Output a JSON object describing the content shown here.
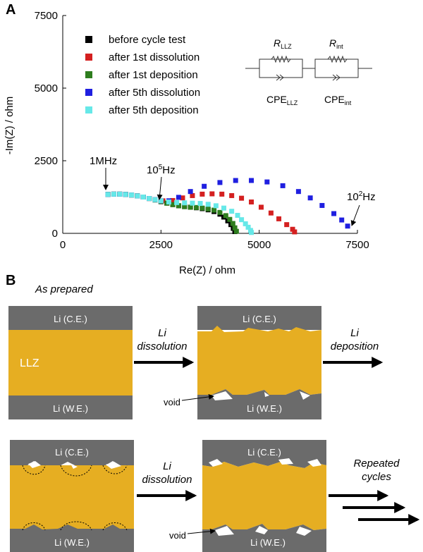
{
  "panel_a": {
    "label": "A",
    "chart_data": {
      "type": "scatter",
      "xlabel": "Re(Z) / ohm",
      "ylabel": "-Im(Z) / ohm",
      "xlim": [
        0,
        7500
      ],
      "ylim": [
        0,
        7500
      ],
      "xticks": [
        0,
        2500,
        5000,
        7500
      ],
      "yticks": [
        0,
        2500,
        5000,
        7500
      ],
      "xtick_labels": [
        "0",
        "2500",
        "5000",
        "7500"
      ],
      "ytick_labels": [
        "0",
        "2500",
        "5000",
        "7500"
      ],
      "legend_position": "top-left",
      "series": [
        {
          "name": "before cycle test",
          "color": "#000000",
          "points": [
            [
              1150,
              1340
            ],
            [
              1300,
              1350
            ],
            [
              1450,
              1350
            ],
            [
              1600,
              1340
            ],
            [
              1750,
              1320
            ],
            [
              1900,
              1290
            ],
            [
              2050,
              1250
            ],
            [
              2200,
              1200
            ],
            [
              2350,
              1150
            ],
            [
              2500,
              1090
            ],
            [
              2650,
              1040
            ],
            [
              2800,
              990
            ],
            [
              2950,
              950
            ],
            [
              3100,
              920
            ],
            [
              3250,
              900
            ],
            [
              3400,
              880
            ],
            [
              3550,
              850
            ],
            [
              3700,
              810
            ],
            [
              3850,
              750
            ],
            [
              4000,
              660
            ],
            [
              4100,
              560
            ],
            [
              4200,
              430
            ],
            [
              4280,
              300
            ],
            [
              4340,
              170
            ],
            [
              4380,
              60
            ]
          ]
        },
        {
          "name": "after 1st dissolution",
          "color": "#d42020",
          "points": [
            [
              1150,
              1340
            ],
            [
              1300,
              1350
            ],
            [
              1450,
              1350
            ],
            [
              1600,
              1340
            ],
            [
              1750,
              1320
            ],
            [
              1900,
              1290
            ],
            [
              2050,
              1250
            ],
            [
              2200,
              1200
            ],
            [
              2350,
              1160
            ],
            [
              2550,
              1120
            ],
            [
              2800,
              1130
            ],
            [
              3050,
              1220
            ],
            [
              3300,
              1300
            ],
            [
              3550,
              1350
            ],
            [
              3800,
              1360
            ],
            [
              4050,
              1350
            ],
            [
              4300,
              1300
            ],
            [
              4550,
              1210
            ],
            [
              4800,
              1080
            ],
            [
              5050,
              900
            ],
            [
              5300,
              700
            ],
            [
              5500,
              500
            ],
            [
              5700,
              300
            ],
            [
              5850,
              140
            ],
            [
              5900,
              50
            ]
          ]
        },
        {
          "name": "after 1st deposition",
          "color": "#2e7d1e",
          "points": [
            [
              1150,
              1340
            ],
            [
              1300,
              1350
            ],
            [
              1450,
              1350
            ],
            [
              1600,
              1340
            ],
            [
              1750,
              1320
            ],
            [
              1900,
              1290
            ],
            [
              2050,
              1250
            ],
            [
              2200,
              1200
            ],
            [
              2350,
              1150
            ],
            [
              2500,
              1100
            ],
            [
              2650,
              1040
            ],
            [
              2800,
              990
            ],
            [
              2950,
              950
            ],
            [
              3100,
              920
            ],
            [
              3250,
              900
            ],
            [
              3400,
              890
            ],
            [
              3550,
              870
            ],
            [
              3700,
              840
            ],
            [
              3850,
              800
            ],
            [
              4000,
              720
            ],
            [
              4150,
              610
            ],
            [
              4250,
              480
            ],
            [
              4330,
              340
            ],
            [
              4380,
              190
            ],
            [
              4420,
              70
            ]
          ]
        },
        {
          "name": "after 5th dissolution",
          "color": "#1f1fe0",
          "points": [
            [
              1150,
              1340
            ],
            [
              1300,
              1350
            ],
            [
              1450,
              1350
            ],
            [
              1600,
              1340
            ],
            [
              1750,
              1320
            ],
            [
              1900,
              1290
            ],
            [
              2050,
              1250
            ],
            [
              2200,
              1200
            ],
            [
              2350,
              1160
            ],
            [
              2500,
              1120
            ],
            [
              2700,
              1120
            ],
            [
              2950,
              1240
            ],
            [
              3250,
              1440
            ],
            [
              3600,
              1620
            ],
            [
              4000,
              1750
            ],
            [
              4400,
              1820
            ],
            [
              4800,
              1820
            ],
            [
              5200,
              1770
            ],
            [
              5600,
              1640
            ],
            [
              6000,
              1440
            ],
            [
              6300,
              1220
            ],
            [
              6600,
              960
            ],
            [
              6900,
              680
            ],
            [
              7100,
              460
            ],
            [
              7250,
              250
            ]
          ]
        },
        {
          "name": "after 5th deposition",
          "color": "#66e8e8",
          "points": [
            [
              1150,
              1340
            ],
            [
              1300,
              1350
            ],
            [
              1450,
              1350
            ],
            [
              1600,
              1340
            ],
            [
              1750,
              1320
            ],
            [
              1900,
              1290
            ],
            [
              2050,
              1250
            ],
            [
              2200,
              1200
            ],
            [
              2350,
              1160
            ],
            [
              2500,
              1120
            ],
            [
              2700,
              1080
            ],
            [
              2900,
              1060
            ],
            [
              3100,
              1050
            ],
            [
              3300,
              1040
            ],
            [
              3500,
              1030
            ],
            [
              3700,
              1000
            ],
            [
              3900,
              950
            ],
            [
              4100,
              870
            ],
            [
              4300,
              760
            ],
            [
              4450,
              620
            ],
            [
              4550,
              470
            ],
            [
              4650,
              330
            ],
            [
              4720,
              210
            ],
            [
              4780,
              100
            ],
            [
              4800,
              30
            ]
          ]
        }
      ],
      "annotations": [
        {
          "text": "1MHz",
          "x": 1150,
          "y": 1340
        },
        {
          "text_base": "10",
          "text_sup": "5",
          "text_tail": "Hz",
          "x": 2500,
          "y": 1090
        },
        {
          "text_base": "10",
          "text_sup": "2",
          "text_tail": "Hz",
          "x": 7250,
          "y": 250
        }
      ]
    },
    "circuit": {
      "r_llz": {
        "main": "R",
        "sub": "LLZ"
      },
      "r_int": {
        "main": "R",
        "sub": "int"
      },
      "cpe_llz": {
        "main": "CPE",
        "sub": "LLZ"
      },
      "cpe_int": {
        "main": "CPE",
        "sub": "int"
      }
    }
  },
  "panel_b": {
    "label": "B",
    "as_prepared": "As prepared",
    "li_ce": "Li (C.E.)",
    "li_we": "Li (W.E.)",
    "llz": "LLZ",
    "void": "void",
    "li_dissolution_1": "Li",
    "li_dissolution_2": "dissolution",
    "li_deposition_1": "Li",
    "li_deposition_2": "deposition",
    "repeated_1": "Repeated",
    "repeated_2": "cycles",
    "colors": {
      "li": "#6b6b6b",
      "llz": "#e6ae22",
      "void": "#ffffff"
    }
  }
}
